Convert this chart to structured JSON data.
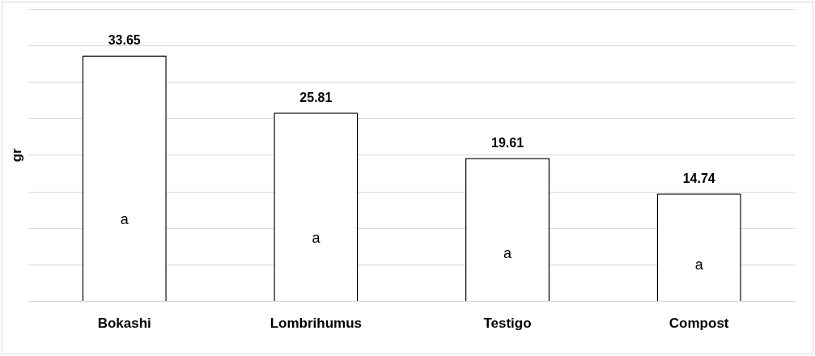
{
  "chart_data": {
    "type": "bar",
    "ylabel": "gr",
    "categories": [
      "Bokashi",
      "Lombrihumus",
      "Testigo",
      "Compost"
    ],
    "series": [
      {
        "color": "#ffffff",
        "values": [
          33.65,
          25.81,
          19.61,
          14.74
        ]
      }
    ],
    "ylim": [
      0,
      40
    ],
    "yticks": [
      {
        "value": 0,
        "label": null
      },
      {
        "value": 5,
        "label": null
      },
      {
        "value": 10,
        "label": null
      },
      {
        "value": 15,
        "label": null
      },
      {
        "value": 20,
        "label": null
      },
      {
        "value": 25,
        "label": null
      },
      {
        "value": 30,
        "label": null
      },
      {
        "value": 35,
        "label": null
      },
      {
        "value": 40,
        "label": null
      }
    ],
    "tick_labels": "x",
    "grid": "y",
    "legend": false,
    "data_labels": true,
    "annotations": [
      "a",
      "a",
      "a",
      "a"
    ]
  }
}
